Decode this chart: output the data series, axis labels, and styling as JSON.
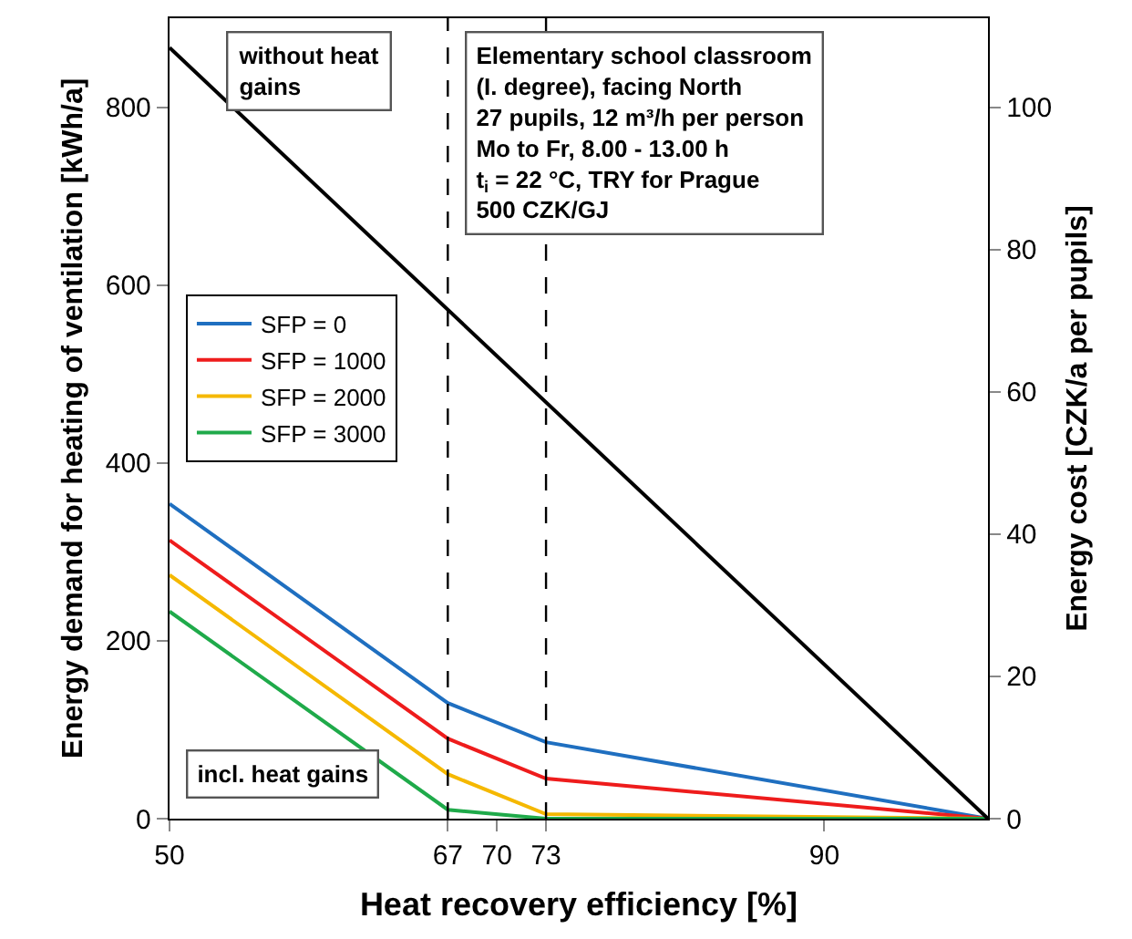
{
  "chart_data": {
    "type": "line",
    "xlabel": "Heat recovery efficiency [%]",
    "ylabel": "Energy demand for heating of ventilation [kWh/a]",
    "y2label": "Energy cost [CZK/a per pupils]",
    "x": [
      50,
      67,
      73,
      100
    ],
    "series": [
      {
        "name": "SFP = 0",
        "color": "#1f6fc0",
        "values": [
          354,
          130,
          86,
          0
        ]
      },
      {
        "name": "SFP = 1000",
        "color": "#ee1c1c",
        "values": [
          313,
          90,
          45,
          0
        ]
      },
      {
        "name": "SFP = 2000",
        "color": "#f5b800",
        "values": [
          274,
          50,
          5,
          0
        ]
      },
      {
        "name": "SFP = 3000",
        "color": "#1faa4a",
        "values": [
          233,
          10,
          0,
          0
        ]
      },
      {
        "color": "#000000",
        "x": [
          50,
          100
        ],
        "values": [
          867,
          0
        ]
      }
    ],
    "xlim": [
      50,
      100
    ],
    "xticks": [
      50,
      67,
      70,
      73,
      90
    ],
    "ylim": [
      0,
      900
    ],
    "yticks": [
      0,
      200,
      400,
      600,
      800
    ],
    "y2lim": [
      0,
      112.5
    ],
    "y2ticks": [
      0,
      20,
      40,
      60,
      80,
      100
    ],
    "ref_lines": [
      {
        "axis": "x",
        "value": 67,
        "color": "#000000",
        "line_style": "dashed"
      },
      {
        "axis": "x",
        "value": 73,
        "color": "#000000",
        "line_style": "dashed"
      }
    ],
    "annotations": [
      "without heat\ngains",
      "Elementary school classroom\n(I. degree), facing North\n27 pupils, 12 m³/h per person\nMo to Fr, 8.00 - 13.00 h\nt$_{i}$ = 22 °C, TRY for Prague\n500 CZK/GJ",
      "incl. heat gains"
    ],
    "legend": "left",
    "marker": "none",
    "line_style": "solid"
  }
}
